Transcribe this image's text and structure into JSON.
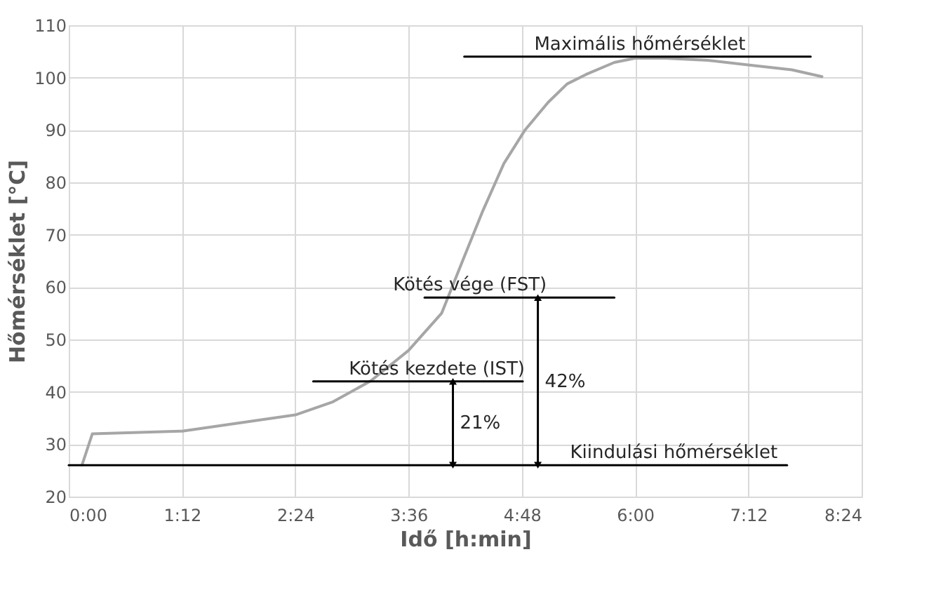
{
  "chart_data": {
    "type": "line",
    "xlabel": "Idő [h:min]",
    "ylabel": "Hőmérséklet [°C]",
    "xlim": [
      0,
      8.4
    ],
    "xticks": [
      {
        "value": 0,
        "label": "0:00"
      },
      {
        "value": 1.2,
        "label": "1:12"
      },
      {
        "value": 2.4,
        "label": "2:24"
      },
      {
        "value": 3.6,
        "label": "3:36"
      },
      {
        "value": 4.8,
        "label": "4:48"
      },
      {
        "value": 6.0,
        "label": "6:00"
      },
      {
        "value": 7.2,
        "label": "7:12"
      },
      {
        "value": 8.4,
        "label": "8:24"
      }
    ],
    "ylim": [
      20,
      110
    ],
    "yticks": [
      20,
      30,
      40,
      50,
      60,
      70,
      80,
      90,
      100,
      110
    ],
    "grid": true,
    "line_style": "solid",
    "series": [
      {
        "color": "#a6a6a6",
        "x": [
          0.14,
          0.25,
          1.2,
          2.4,
          2.8,
          3.2,
          3.6,
          3.95,
          4.19,
          4.39,
          4.61,
          4.83,
          5.08,
          5.28,
          5.48,
          5.78,
          6.0,
          6.32,
          6.77,
          7.21,
          7.66,
          7.98
        ],
        "values": [
          26,
          32,
          32.5,
          35.6,
          38.1,
          42.1,
          47.9,
          55,
          65.8,
          74.7,
          83.6,
          89.9,
          95.3,
          98.8,
          100.6,
          102.9,
          103.7,
          103.7,
          103.3,
          102.4,
          101.5,
          100.2
        ]
      },
      {
        "color": "#000000",
        "x": [
          4.19,
          7.86
        ],
        "values": [
          104,
          104
        ]
      },
      {
        "color": "#000000",
        "x": [
          3.77,
          5.78
        ],
        "values": [
          58,
          58
        ]
      },
      {
        "color": "#000000",
        "x": [
          2.59,
          4.81
        ],
        "values": [
          42,
          42
        ]
      },
      {
        "color": "#000000",
        "x": [
          0,
          7.61
        ],
        "values": [
          26,
          26
        ]
      },
      {
        "color": "#000000",
        "x": [
          4.07,
          4.07
        ],
        "values": [
          26,
          42
        ],
        "marker": "triangle"
      },
      {
        "color": "#000000",
        "x": [
          4.97,
          4.97
        ],
        "values": [
          26,
          58
        ],
        "marker": "triangle"
      }
    ],
    "annotations": [
      {
        "text": "Maximális hőmérséklet",
        "x": 6.05,
        "y": 104
      },
      {
        "text": "Kötés vége (FST)",
        "x": 4.25,
        "y": 58
      },
      {
        "text": "Kötés kezdete (IST)",
        "x": 3.9,
        "y": 42
      },
      {
        "text": "Kiindulási hőmérséklet",
        "x": 6.41,
        "y": 26
      },
      {
        "text": "21%",
        "x": 4.07,
        "y": 34
      },
      {
        "text": "42%",
        "x": 4.97,
        "y": 42
      }
    ]
  }
}
